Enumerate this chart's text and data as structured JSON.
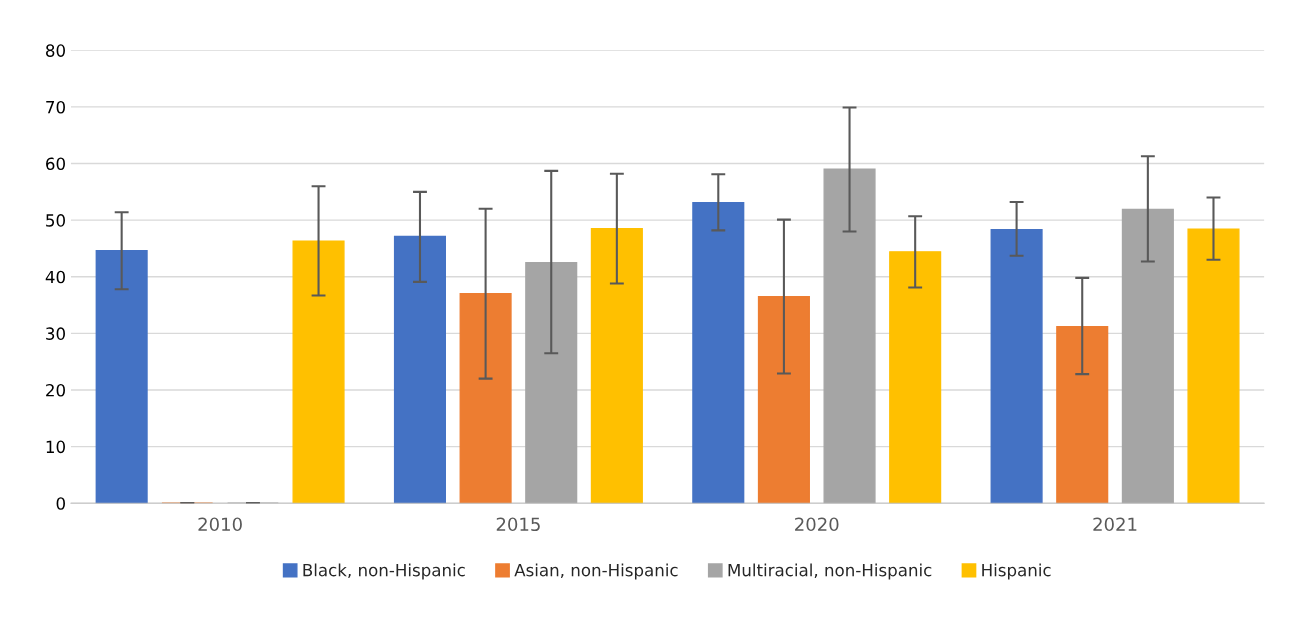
{
  "chart_data": {
    "type": "bar",
    "categories": [
      "2010",
      "2015",
      "2020",
      "2021"
    ],
    "series": [
      {
        "name": "Black, non-Hispanic",
        "color": "#4472c4",
        "values": [
          44.6,
          47.1,
          53.1,
          48.3
        ],
        "errors": [
          [
            37.8,
            51.4
          ],
          [
            39.1,
            55.0
          ],
          [
            48.2,
            58.1
          ],
          [
            43.7,
            53.2
          ]
        ]
      },
      {
        "name": "Asian, non-Hispanic",
        "color": "#ed7d31",
        "values": [
          0,
          37.0,
          36.5,
          31.2
        ],
        "errors": [
          0,
          [
            22.0,
            52.0
          ],
          [
            22.9,
            50.1
          ],
          [
            22.8,
            39.8
          ]
        ]
      },
      {
        "name": "Multiracial, non-Hispanic",
        "color": "#a5a5a5",
        "values": [
          0,
          42.5,
          59.0,
          51.9
        ],
        "errors": [
          0,
          [
            26.5,
            58.7
          ],
          [
            48.0,
            69.9
          ],
          [
            42.7,
            61.3
          ]
        ]
      },
      {
        "name": "Hispanic",
        "color": "#ffc000",
        "values": [
          46.3,
          48.5,
          44.4,
          48.4
        ],
        "errors": [
          [
            36.7,
            56.0
          ],
          [
            38.8,
            58.2
          ],
          [
            38.1,
            50.7
          ],
          [
            43.0,
            54.0
          ]
        ]
      }
    ],
    "ylim": [
      0,
      80
    ],
    "yticks": [
      0,
      10,
      20,
      30,
      40,
      50,
      60,
      70,
      80
    ],
    "grid": "y",
    "legend": "bottom"
  }
}
